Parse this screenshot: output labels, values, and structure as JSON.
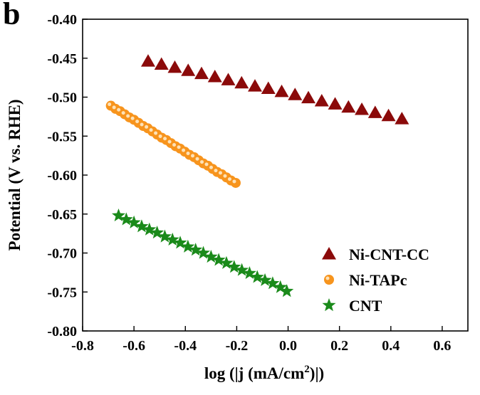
{
  "panel_label": "b",
  "chart_data": {
    "type": "scatter",
    "xlabel": "log (|j (mA/cm",
    "xlabel_sup": "2",
    "xlabel_tail": ")|)",
    "ylabel": "Potential (V vs. RHE)",
    "xlim": [
      -0.8,
      0.7
    ],
    "ylim": [
      -0.8,
      -0.4
    ],
    "xticks": [
      -0.8,
      -0.6,
      -0.4,
      -0.2,
      0.0,
      0.2,
      0.4,
      0.6
    ],
    "xtick_labels": [
      "-0.8",
      "-0.6",
      "-0.4",
      "-0.2",
      "0.0",
      "0.2",
      "0.4",
      "0.6"
    ],
    "yticks": [
      -0.8,
      -0.75,
      -0.7,
      -0.65,
      -0.6,
      -0.55,
      -0.5,
      -0.45,
      -0.4
    ],
    "ytick_labels": [
      "-0.80",
      "-0.75",
      "-0.70",
      "-0.65",
      "-0.60",
      "-0.55",
      "-0.50",
      "-0.45",
      "-0.40"
    ],
    "grid": false,
    "legend_position": "bottom-right",
    "series": [
      {
        "name": "Ni-CNT-CC",
        "marker": "triangle",
        "color": "#8b0a0a",
        "x": [
          -0.545,
          -0.493,
          -0.441,
          -0.389,
          -0.337,
          -0.285,
          -0.233,
          -0.181,
          -0.129,
          -0.077,
          -0.025,
          0.027,
          0.079,
          0.131,
          0.183,
          0.235,
          0.287,
          0.339,
          0.391,
          0.443
        ],
        "y": [
          -0.454,
          -0.458,
          -0.462,
          -0.466,
          -0.47,
          -0.474,
          -0.478,
          -0.482,
          -0.486,
          -0.489,
          -0.493,
          -0.497,
          -0.501,
          -0.505,
          -0.509,
          -0.513,
          -0.516,
          -0.52,
          -0.524,
          -0.528
        ]
      },
      {
        "name": "Ni-TAPc",
        "marker": "circle",
        "color": "#f7941d",
        "x": [
          -0.69,
          -0.672,
          -0.654,
          -0.636,
          -0.618,
          -0.6,
          -0.582,
          -0.564,
          -0.546,
          -0.528,
          -0.51,
          -0.492,
          -0.474,
          -0.456,
          -0.438,
          -0.42,
          -0.402,
          -0.384,
          -0.366,
          -0.348,
          -0.33,
          -0.312,
          -0.294,
          -0.276,
          -0.258,
          -0.24,
          -0.222,
          -0.204
        ],
        "y": [
          -0.511,
          -0.515,
          -0.518,
          -0.522,
          -0.526,
          -0.529,
          -0.533,
          -0.537,
          -0.54,
          -0.544,
          -0.548,
          -0.552,
          -0.555,
          -0.559,
          -0.563,
          -0.566,
          -0.57,
          -0.574,
          -0.577,
          -0.581,
          -0.585,
          -0.588,
          -0.592,
          -0.596,
          -0.599,
          -0.603,
          -0.607,
          -0.61
        ]
      },
      {
        "name": "CNT",
        "marker": "star",
        "color": "#1a8a1a",
        "x": [
          -0.66,
          -0.63,
          -0.6,
          -0.57,
          -0.54,
          -0.51,
          -0.48,
          -0.45,
          -0.42,
          -0.39,
          -0.36,
          -0.33,
          -0.3,
          -0.27,
          -0.24,
          -0.21,
          -0.18,
          -0.15,
          -0.12,
          -0.09,
          -0.06,
          -0.03,
          -0.005
        ],
        "y": [
          -0.652,
          -0.657,
          -0.661,
          -0.666,
          -0.67,
          -0.674,
          -0.679,
          -0.683,
          -0.687,
          -0.692,
          -0.696,
          -0.7,
          -0.705,
          -0.709,
          -0.713,
          -0.718,
          -0.722,
          -0.726,
          -0.731,
          -0.735,
          -0.739,
          -0.744,
          -0.749
        ]
      }
    ]
  }
}
